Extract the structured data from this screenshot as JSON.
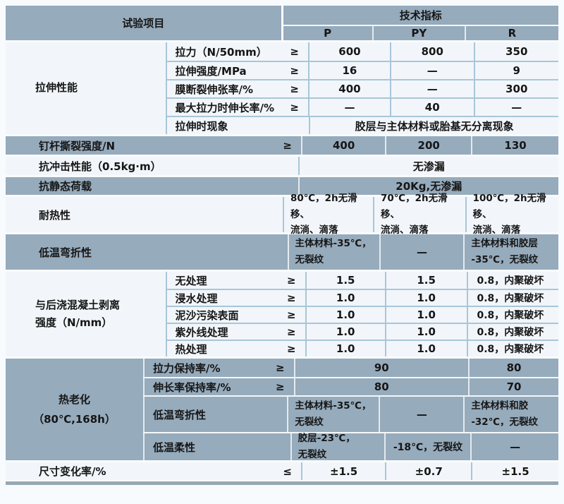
{
  "header": {
    "left_title": "试验项目",
    "right_title": "技术指标",
    "col_p": "P",
    "col_py": "PY",
    "col_r": "R"
  },
  "tensile": {
    "group": "拉伸性能",
    "rows": [
      {
        "label": "拉力（N/50mm）",
        "op": "≥",
        "p": "600",
        "py": "800",
        "r": "350"
      },
      {
        "label": "拉伸强度/MPa",
        "op": "≥",
        "p": "16",
        "py": "—",
        "r": "9"
      },
      {
        "label": "膜断裂伸张率/%",
        "op": "≥",
        "p": "400",
        "py": "—",
        "r": "300"
      },
      {
        "label": "最大拉力时伸长率/%",
        "op": "≥",
        "p": "—",
        "py": "40",
        "r": "—"
      },
      {
        "label": "拉伸时现象",
        "span": "胶层与主体材料或胎基无分离现象"
      }
    ]
  },
  "nail": {
    "label": "钉杆撕裂强度/N",
    "op": "≥",
    "p": "400",
    "py": "200",
    "r": "130"
  },
  "impact": {
    "label": "抗冲击性能（0.5kg·m）",
    "span": "无渗漏"
  },
  "static_load": {
    "label": "抗静态荷载",
    "span": "20Kg,无渗漏"
  },
  "heat": {
    "label": "耐热性",
    "p": "80℃，2h无滑移、\n流淌、滴落",
    "py": "70℃，2h无滑移、\n流淌、滴落",
    "r": "100℃，2h无滑移、\n流淌、滴落"
  },
  "bend": {
    "label": "低温弯折性",
    "p": "主体材料-35℃，\n无裂纹",
    "py": "—",
    "r": "主体材料和胶层\n-35℃，无裂纹"
  },
  "peel": {
    "group": "与后浇混凝土剥离\n强度（N/mm）",
    "rows": [
      {
        "label": "无处理",
        "op": "≥",
        "p": "1.5",
        "py": "1.5",
        "r": "0.8，内聚破坏"
      },
      {
        "label": "浸水处理",
        "op": "≥",
        "p": "1.0",
        "py": "1.0",
        "r": "0.8，内聚破坏"
      },
      {
        "label": "泥沙污染表面",
        "op": "≥",
        "p": "1.0",
        "py": "1.0",
        "r": "0.8，内聚破坏"
      },
      {
        "label": "紫外线处理",
        "op": "≥",
        "p": "1.0",
        "py": "1.0",
        "r": "0.8，内聚破坏"
      },
      {
        "label": "热处理",
        "op": "≥",
        "p": "1.0",
        "py": "1.0",
        "r": "0.8，内聚破坏"
      }
    ]
  },
  "aging": {
    "group": "热老化\n（80℃,168h）",
    "tensile_retention": {
      "label": "拉力保持率/%",
      "op": "≥",
      "p_py": "90",
      "r": "80"
    },
    "elong_retention": {
      "label": "伸长率保持率/%",
      "op": "≥",
      "p_py": "80",
      "r": "70"
    },
    "bend": {
      "label": "低温弯折性",
      "p": "主体材料-35℃，\n无裂纹",
      "py": "—",
      "r": "主体材料和胶\n-32℃，无裂纹"
    },
    "flex": {
      "label": "低温柔性",
      "p": "胶层-23℃，\n无裂纹",
      "py": "-18℃，无裂纹",
      "r": "—"
    }
  },
  "dimension": {
    "label": "尺寸变化率/%",
    "op": "≤",
    "p": "±1.5",
    "py": "±0.7",
    "r": "±1.5"
  },
  "colors": {
    "shaded_band": "#96abbc",
    "light_row": "#f2f6fa",
    "divider": "#a9c6d8",
    "text": "#161616",
    "bottom_bar": "#97a8b4"
  }
}
